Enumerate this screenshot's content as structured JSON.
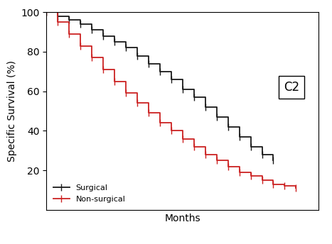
{
  "chart_data": {
    "type": "line",
    "y_label": "Specific Survival (%)",
    "x_label": "Months",
    "annotations": [
      "C2"
    ],
    "x": [
      0,
      5,
      10,
      15,
      20,
      25,
      30,
      35,
      40,
      45,
      50,
      55,
      60,
      65,
      70,
      75,
      80,
      85,
      90,
      95,
      100,
      105,
      110
    ],
    "series": [
      {
        "name": "Surgical",
        "color": "#1a1a1a",
        "marker": "vline",
        "line_style": "step",
        "values": [
          100,
          98,
          96,
          94,
          91,
          88,
          85,
          82,
          78,
          74,
          70,
          66,
          61,
          57,
          52,
          47,
          42,
          37,
          32,
          28,
          25,
          null,
          null
        ]
      },
      {
        "name": "Non-surgical",
        "color": "#cc2222",
        "marker": "vline",
        "line_style": "step",
        "values": [
          100,
          95,
          89,
          83,
          77,
          71,
          65,
          59,
          54,
          49,
          44,
          40,
          36,
          32,
          28,
          25,
          22,
          19,
          17,
          15,
          13,
          12,
          11
        ]
      }
    ],
    "xlim": [
      0,
      120
    ],
    "xticks": [],
    "ylim": [
      0,
      100
    ],
    "yticks": [
      20,
      40,
      60,
      80,
      100
    ],
    "tick_labels": "y",
    "legend": "lower left",
    "grid": false
  }
}
